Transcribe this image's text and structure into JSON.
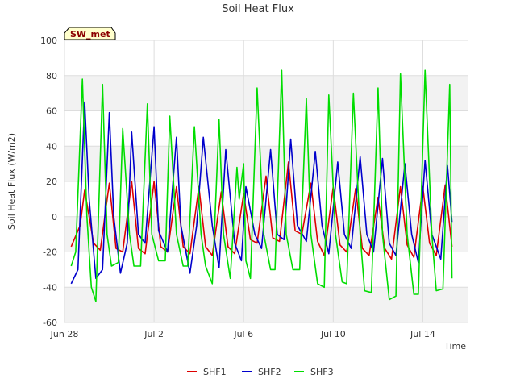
{
  "chart_data": {
    "type": "line",
    "title": "Soil Heat Flux",
    "xlabel": "Time",
    "ylabel": "Soil Heat Flux (W/m2)",
    "badge": "SW_met",
    "ylim": [
      -60,
      100
    ],
    "yticks": [
      -60,
      -40,
      -20,
      0,
      20,
      40,
      60,
      80,
      100
    ],
    "xlim_days": [
      0,
      18
    ],
    "xticks": [
      {
        "day": 0,
        "label": "Jun 28"
      },
      {
        "day": 4,
        "label": "Jul 2"
      },
      {
        "day": 8,
        "label": "Jul 6"
      },
      {
        "day": 12,
        "label": "Jul 10"
      },
      {
        "day": 16,
        "label": "Jul 14"
      }
    ],
    "series": [
      {
        "name": "SHF1",
        "color": "#dd0000",
        "days": [
          0.3,
          0.7,
          0.9,
          1.3,
          1.6,
          2.0,
          2.3,
          2.6,
          3.0,
          3.3,
          3.6,
          4.0,
          4.3,
          4.6,
          5.0,
          5.3,
          5.6,
          6.0,
          6.3,
          6.6,
          7.0,
          7.3,
          7.6,
          8.0,
          8.3,
          8.6,
          9.0,
          9.3,
          9.6,
          10.0,
          10.3,
          10.6,
          11.0,
          11.3,
          11.6,
          12.0,
          12.3,
          12.6,
          13.0,
          13.3,
          13.6,
          14.0,
          14.3,
          14.6,
          15.0,
          15.3,
          15.6,
          16.0,
          16.3,
          16.6,
          17.0,
          17.3
        ],
        "values": [
          -17,
          -5,
          15,
          -15,
          -19,
          19,
          -18,
          -20,
          20,
          -18,
          -21,
          20,
          -17,
          -20,
          17,
          -17,
          -21,
          17,
          -17,
          -22,
          14,
          -17,
          -21,
          13,
          -13,
          -15,
          23,
          -12,
          -14,
          31,
          -8,
          -10,
          19,
          -14,
          -22,
          17,
          -16,
          -20,
          16,
          -18,
          -22,
          11,
          -18,
          -24,
          17,
          -16,
          -23,
          17,
          -15,
          -22,
          18,
          -17
        ]
      },
      {
        "name": "SHF2",
        "color": "#0000cc",
        "days": [
          0.3,
          0.6,
          0.9,
          1.1,
          1.4,
          1.7,
          2.0,
          2.2,
          2.5,
          2.8,
          3.0,
          3.3,
          3.6,
          4.0,
          4.2,
          4.6,
          5.0,
          5.2,
          5.6,
          5.9,
          6.2,
          6.6,
          6.9,
          7.2,
          7.6,
          7.9,
          8.1,
          8.5,
          8.8,
          9.2,
          9.5,
          9.8,
          10.1,
          10.4,
          10.8,
          11.2,
          11.5,
          11.8,
          12.2,
          12.5,
          12.8,
          13.2,
          13.5,
          13.8,
          14.2,
          14.5,
          14.8,
          15.2,
          15.5,
          15.8,
          16.1,
          16.4,
          16.8,
          17.1,
          17.3
        ],
        "values": [
          -38,
          -30,
          65,
          10,
          -35,
          -30,
          59,
          0,
          -32,
          -15,
          48,
          -10,
          -15,
          51,
          -8,
          -20,
          45,
          -5,
          -32,
          -5,
          45,
          -5,
          -29,
          38,
          -15,
          -25,
          17,
          -10,
          -18,
          38,
          -10,
          -13,
          44,
          -5,
          -14,
          37,
          -5,
          -21,
          31,
          -10,
          -18,
          34,
          -10,
          -20,
          33,
          -15,
          -22,
          30,
          -10,
          -26,
          32,
          -10,
          -24,
          29,
          -3
        ]
      },
      {
        "name": "SHF3",
        "color": "#00dd00",
        "days": [
          0.3,
          0.5,
          0.8,
          1.0,
          1.2,
          1.4,
          1.7,
          1.9,
          2.1,
          2.4,
          2.6,
          2.9,
          3.1,
          3.4,
          3.7,
          3.9,
          4.2,
          4.5,
          4.7,
          5.0,
          5.3,
          5.5,
          5.8,
          6.1,
          6.3,
          6.6,
          6.9,
          7.1,
          7.4,
          7.7,
          7.8,
          8.0,
          8.1,
          8.3,
          8.6,
          8.9,
          9.2,
          9.4,
          9.7,
          9.9,
          10.2,
          10.5,
          10.8,
          11.0,
          11.3,
          11.6,
          11.8,
          12.1,
          12.4,
          12.6,
          12.9,
          13.2,
          13.4,
          13.7,
          14.0,
          14.2,
          14.5,
          14.8,
          15.0,
          15.3,
          15.6,
          15.8,
          16.1,
          16.4,
          16.6,
          16.9,
          17.2,
          17.3
        ],
        "values": [
          -28,
          -20,
          78,
          0,
          -40,
          -48,
          75,
          -10,
          -28,
          -26,
          50,
          -10,
          -28,
          -28,
          64,
          -10,
          -25,
          -25,
          57,
          -10,
          -28,
          -28,
          51,
          -10,
          -28,
          -38,
          55,
          -10,
          -35,
          28,
          10,
          30,
          -25,
          -35,
          73,
          -10,
          -30,
          -30,
          83,
          -10,
          -30,
          -30,
          67,
          -10,
          -38,
          -40,
          69,
          -10,
          -37,
          -38,
          70,
          -10,
          -42,
          -43,
          73,
          -10,
          -47,
          -45,
          81,
          -10,
          -44,
          -44,
          83,
          -10,
          -42,
          -41,
          75,
          -35
        ]
      }
    ]
  }
}
